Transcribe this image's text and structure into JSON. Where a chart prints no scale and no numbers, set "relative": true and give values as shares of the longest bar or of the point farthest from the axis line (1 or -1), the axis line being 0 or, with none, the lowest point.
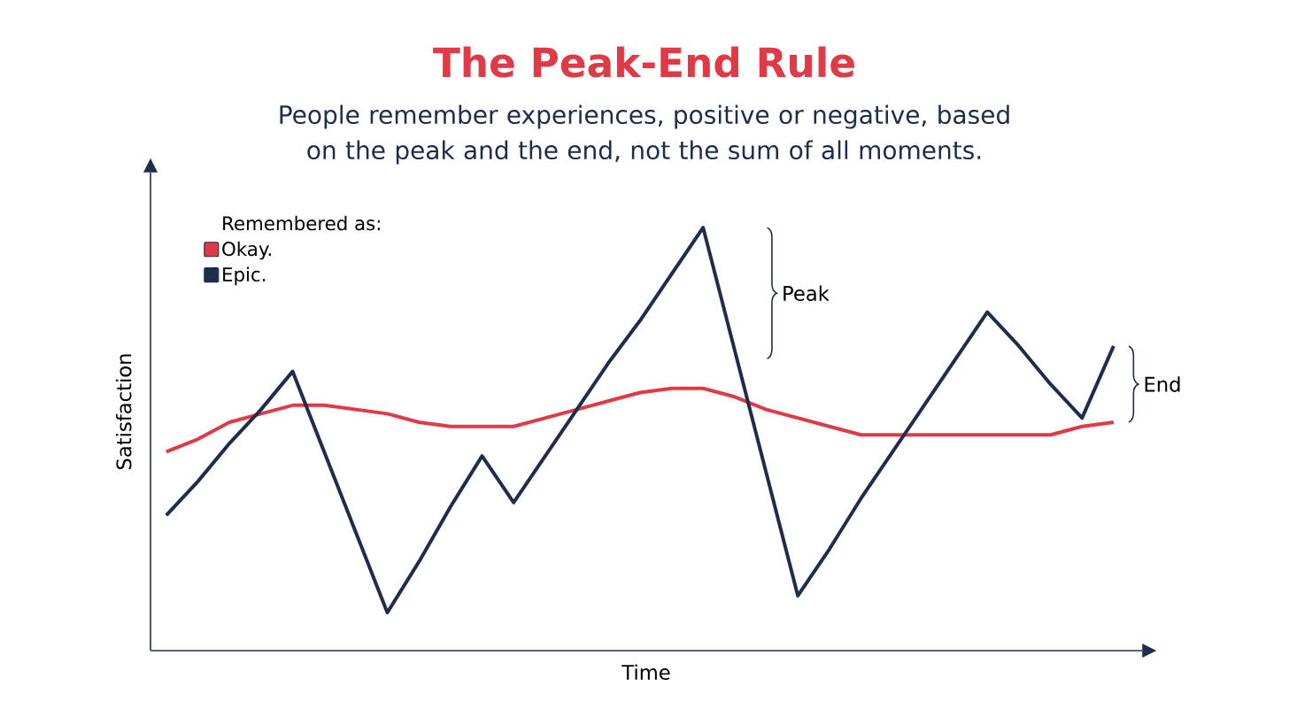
{
  "chart_data": {
    "type": "line",
    "title": "The Peak-End Rule",
    "subtitle": "People remember experiences, positive or negative, based on the peak and the end, not the sum of all moments.",
    "xlabel": "Time",
    "ylabel": "Satisfaction",
    "legend_title": "Remembered as:",
    "annotations": [
      "Peak",
      "End"
    ],
    "relative": true,
    "legend": "top left",
    "tick_labels": false,
    "marker": "none",
    "line_style": "solid",
    "categories": [
      null,
      null,
      null,
      null,
      null,
      null,
      null,
      null,
      null,
      null,
      null,
      null,
      null,
      null,
      null,
      null,
      null,
      null,
      null,
      null,
      null,
      null,
      null,
      null,
      null,
      null,
      null,
      null,
      null,
      null,
      null
    ],
    "series": [
      {
        "name": "Okay.",
        "color": "#e03a47",
        "values": [
          0.47,
          0.5,
          0.54,
          0.56,
          0.58,
          0.58,
          0.57,
          0.56,
          0.54,
          0.53,
          0.53,
          0.53,
          0.55,
          0.57,
          0.59,
          0.61,
          0.62,
          0.62,
          0.6,
          0.57,
          0.55,
          0.53,
          0.51,
          0.51,
          0.51,
          0.51,
          0.51,
          0.51,
          0.51,
          0.53,
          0.54
        ]
      },
      {
        "name": "Epic.",
        "color": "#1f2d4d",
        "values": [
          0.32,
          0.4,
          0.49,
          0.57,
          0.66,
          0.47,
          0.28,
          0.09,
          0.21,
          0.34,
          0.46,
          0.35,
          0.46,
          0.57,
          0.68,
          0.78,
          0.89,
          1,
          0.71,
          0.42,
          0.13,
          0.24,
          0.36,
          0.47,
          0.58,
          0.69,
          0.8,
          0.72,
          0.63,
          0.55,
          0.72
        ]
      }
    ]
  }
}
